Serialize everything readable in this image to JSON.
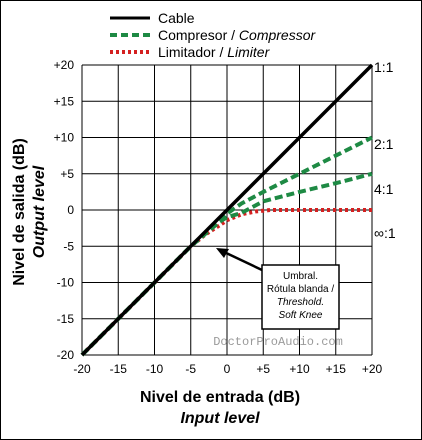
{
  "legend": {
    "cable": "Cable",
    "compressor": "Compresor / ",
    "compressor_en": "Compressor",
    "limiter": "Limitador / ",
    "limiter_en": "Limiter"
  },
  "axes": {
    "x_title": "Nivel de entrada (dB)",
    "x_title_en": "Input level",
    "y_title": "Nivel de salida (dB)",
    "y_title_en": "Output level"
  },
  "ratios": [
    "1:1",
    "2:1",
    "4:1",
    "∞:1"
  ],
  "annotation": {
    "line1": "Umbral.",
    "line2": "Rótula blanda /",
    "line3": "Threshold.",
    "line4": "Soft Knee"
  },
  "watermark": "DoctorProAudio.com",
  "colors": {
    "cable": "#000000",
    "compressor": "#1e8a44",
    "limiter": "#d42020"
  },
  "chart_data": {
    "type": "line",
    "xlim": [
      -20,
      20
    ],
    "ylim": [
      -20,
      20
    ],
    "x_ticks": [
      -20,
      -15,
      -10,
      -5,
      0,
      5,
      10,
      15,
      20
    ],
    "y_ticks": [
      -20,
      -15,
      -10,
      -5,
      0,
      5,
      10,
      15,
      20
    ],
    "x_tick_labels": [
      "-20",
      "-15",
      "-10",
      "-5",
      "0",
      "+5",
      "+10",
      "+15",
      "+20"
    ],
    "y_tick_labels": [
      "-20",
      "-15",
      "-10",
      "-5",
      "0",
      "+5",
      "+10",
      "+15",
      "+20"
    ],
    "grid": true,
    "legend_position": "top",
    "series": [
      {
        "name": "Cable",
        "style": "solid",
        "x": [
          -20,
          20
        ],
        "y": [
          -20,
          20
        ]
      },
      {
        "name": "Compresor / Compressor",
        "style": "dashed",
        "x": [
          -20,
          -5,
          -3,
          -1,
          0,
          2,
          5,
          10,
          15,
          20
        ],
        "y": [
          -20,
          -5,
          -3.1,
          -1.3,
          -0.5,
          0.9,
          2.5,
          5,
          7.5,
          10
        ]
      },
      {
        "name": "Compresor / Compressor",
        "style": "dashed",
        "x": [
          -20,
          -5,
          -3,
          -1,
          0,
          2,
          5,
          10,
          15,
          20
        ],
        "y": [
          -20,
          -5,
          -3.3,
          -1.6,
          -1.0,
          -0.4,
          1.2,
          2.5,
          3.7,
          5
        ]
      },
      {
        "name": "Limitador / Limiter",
        "style": "dotted",
        "x": [
          -20,
          -5,
          -3,
          -1,
          0,
          2,
          4,
          6,
          10,
          15,
          20
        ],
        "y": [
          -20,
          -5,
          -3.4,
          -2.1,
          -1.4,
          -0.6,
          -0.2,
          0,
          0,
          0,
          0
        ]
      }
    ]
  }
}
